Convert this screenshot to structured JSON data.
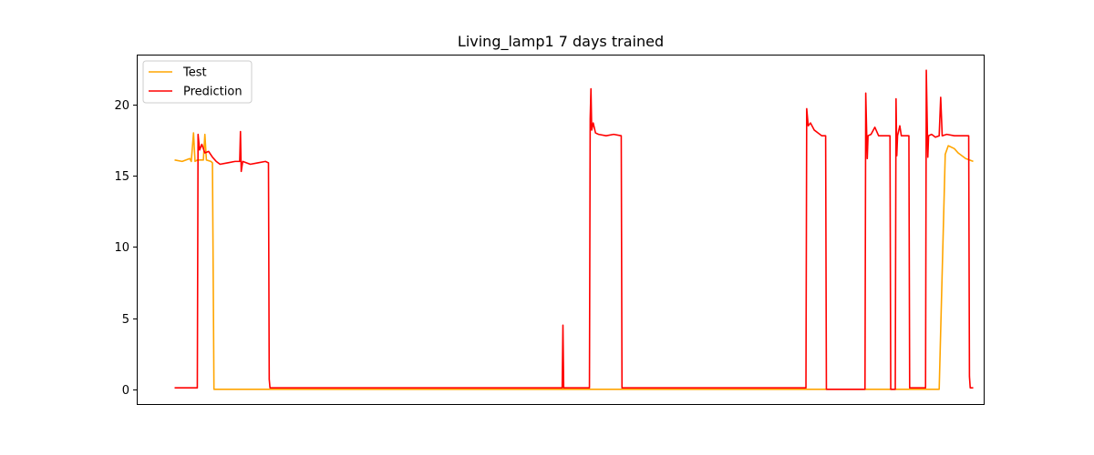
{
  "chart_data": {
    "type": "line",
    "title": "Living_lamp1 7 days trained",
    "xlabel": "",
    "ylabel": "",
    "xlim": [
      -50,
      1070
    ],
    "ylim": [
      -1.1,
      23.5
    ],
    "yticks": [
      0,
      5,
      10,
      15,
      20
    ],
    "ytick_labels": [
      "0",
      "5",
      "10",
      "15",
      "20"
    ],
    "xticks_visible": false,
    "grid": false,
    "legend_position": "top-left",
    "series": [
      {
        "name": "Test",
        "color": "#ffa500",
        "points": [
          [
            0,
            16.1
          ],
          [
            10,
            16.0
          ],
          [
            20,
            16.2
          ],
          [
            22,
            16.0
          ],
          [
            25,
            18.0
          ],
          [
            27,
            16.0
          ],
          [
            30,
            16.1
          ],
          [
            38,
            16.1
          ],
          [
            40,
            17.9
          ],
          [
            42,
            16.1
          ],
          [
            48,
            16.0
          ],
          [
            50,
            15.9
          ],
          [
            52,
            0.0
          ],
          [
            500,
            0.0
          ],
          [
            1000,
            0.0
          ],
          [
            1010,
            0.0
          ],
          [
            1018,
            16.5
          ],
          [
            1022,
            17.1
          ],
          [
            1030,
            16.9
          ],
          [
            1035,
            16.6
          ],
          [
            1040,
            16.4
          ],
          [
            1045,
            16.2
          ],
          [
            1050,
            16.1
          ],
          [
            1055,
            16.0
          ]
        ]
      },
      {
        "name": "Prediction",
        "color": "#ff0000",
        "points": [
          [
            0,
            0.1
          ],
          [
            30,
            0.1
          ],
          [
            31,
            17.9
          ],
          [
            33,
            16.8
          ],
          [
            36,
            17.2
          ],
          [
            40,
            16.6
          ],
          [
            45,
            16.7
          ],
          [
            50,
            16.3
          ],
          [
            55,
            16.0
          ],
          [
            60,
            15.8
          ],
          [
            70,
            15.9
          ],
          [
            80,
            16.0
          ],
          [
            86,
            16.0
          ],
          [
            87,
            18.1
          ],
          [
            88,
            15.3
          ],
          [
            90,
            16.0
          ],
          [
            100,
            15.8
          ],
          [
            110,
            15.9
          ],
          [
            120,
            16.0
          ],
          [
            124,
            15.9
          ],
          [
            125,
            0.7
          ],
          [
            126,
            0.1
          ],
          [
            200,
            0.1
          ],
          [
            300,
            0.1
          ],
          [
            400,
            0.1
          ],
          [
            500,
            0.1
          ],
          [
            512,
            0.1
          ],
          [
            513,
            4.5
          ],
          [
            514,
            0.1
          ],
          [
            548,
            0.1
          ],
          [
            549,
            19.0
          ],
          [
            550,
            21.1
          ],
          [
            551,
            18.2
          ],
          [
            553,
            18.7
          ],
          [
            556,
            18.0
          ],
          [
            560,
            17.9
          ],
          [
            570,
            17.8
          ],
          [
            580,
            17.9
          ],
          [
            590,
            17.8
          ],
          [
            591,
            0.1
          ],
          [
            700,
            0.1
          ],
          [
            834,
            0.1
          ],
          [
            835,
            19.7
          ],
          [
            837,
            18.5
          ],
          [
            840,
            18.7
          ],
          [
            845,
            18.2
          ],
          [
            850,
            18.0
          ],
          [
            855,
            17.8
          ],
          [
            860,
            17.8
          ],
          [
            861,
            0.0
          ],
          [
            912,
            0.0
          ],
          [
            913,
            20.8
          ],
          [
            915,
            16.2
          ],
          [
            916,
            17.8
          ],
          [
            920,
            17.9
          ],
          [
            925,
            18.4
          ],
          [
            930,
            17.8
          ],
          [
            940,
            17.8
          ],
          [
            945,
            17.8
          ],
          [
            946,
            0.0
          ],
          [
            952,
            0.0
          ],
          [
            953,
            20.4
          ],
          [
            954,
            16.4
          ],
          [
            955,
            17.8
          ],
          [
            958,
            18.5
          ],
          [
            960,
            17.8
          ],
          [
            970,
            17.8
          ],
          [
            971,
            0.1
          ],
          [
            992,
            0.1
          ],
          [
            993,
            22.4
          ],
          [
            995,
            16.3
          ],
          [
            996,
            17.8
          ],
          [
            1000,
            17.9
          ],
          [
            1005,
            17.7
          ],
          [
            1010,
            17.8
          ],
          [
            1012,
            20.5
          ],
          [
            1014,
            17.8
          ],
          [
            1020,
            17.9
          ],
          [
            1030,
            17.8
          ],
          [
            1040,
            17.8
          ],
          [
            1049,
            17.8
          ],
          [
            1050,
            0.9
          ],
          [
            1051,
            0.1
          ],
          [
            1055,
            0.1
          ]
        ]
      }
    ]
  }
}
